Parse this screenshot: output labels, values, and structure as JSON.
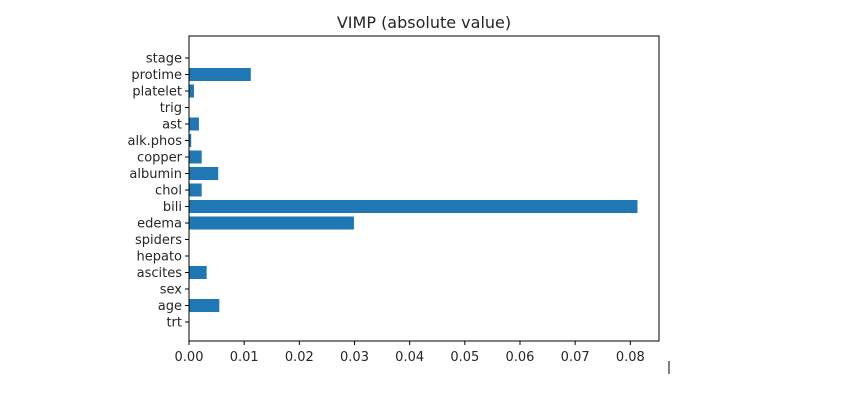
{
  "chart_data": {
    "type": "bar",
    "orientation": "horizontal",
    "title": "VIMP (absolute value)",
    "xlabel": "",
    "ylabel": "",
    "categories": [
      "trt",
      "age",
      "sex",
      "ascites",
      "hepato",
      "spiders",
      "edema",
      "bili",
      "chol",
      "albumin",
      "copper",
      "alk.phos",
      "ast",
      "trig",
      "platelet",
      "protime",
      "stage"
    ],
    "values": [
      0.0,
      0.0055,
      0.0,
      0.0032,
      0.0,
      0.0,
      0.0299,
      0.0813,
      0.0023,
      0.0053,
      0.0023,
      0.0004,
      0.0018,
      0.0,
      0.0009,
      0.0112,
      0.0
    ],
    "xticks": [
      0.0,
      0.01,
      0.02,
      0.03,
      0.04,
      0.05,
      0.06,
      0.07,
      0.08
    ],
    "xtick_labels": [
      "0.00",
      "0.01",
      "0.02",
      "0.03",
      "0.04",
      "0.05",
      "0.06",
      "0.07",
      "0.08"
    ],
    "xlim": [
      0.0,
      0.0852
    ],
    "grid": false,
    "bar_color": "#1f77b4"
  }
}
